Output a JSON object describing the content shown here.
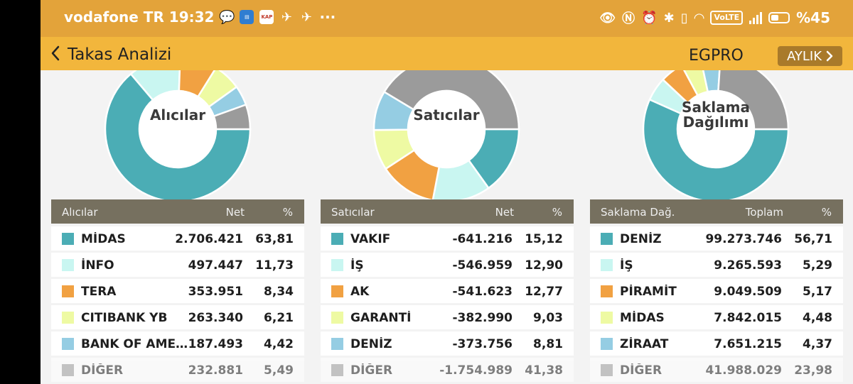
{
  "status_bar": {
    "carrier_time": "vodafone TR 19:32",
    "notification_icons": [
      "chat-bubble-icon",
      "bank-app-icon",
      "kap-icon",
      "swirl-icon",
      "swirl-icon"
    ],
    "kap_label": "KAP",
    "more": "···",
    "battery_text": "%45",
    "volte_label": "VoLTE",
    "battery_level": 0.45
  },
  "app_bar": {
    "title": "Takas Analizi",
    "symbol": "EGPRO",
    "period_label": "AYLIK",
    "background": "#f2b63c"
  },
  "colors": {
    "teal": "#4badb5",
    "light_cyan": "#c9f6f1",
    "orange": "#f1a142",
    "light_yellow": "#eefaa3",
    "light_blue": "#95cde3",
    "gray": "#9b9b9b"
  },
  "panels": [
    {
      "chart_label": "Alıcılar",
      "headers": [
        "Alıcılar",
        "Net",
        "%"
      ],
      "chart_data": {
        "type": "pie",
        "categories": [
          "MİDAS",
          "İNFO",
          "TERA",
          "CITIBANK YB",
          "BANK OF AMERI…",
          "DİĞER"
        ],
        "values": [
          63.81,
          11.73,
          8.34,
          6.21,
          4.42,
          5.49
        ]
      },
      "rows": [
        {
          "name": "MİDAS",
          "value": "2.706.421",
          "pct": "63,81",
          "color": "#4badb5"
        },
        {
          "name": "İNFO",
          "value": "497.447",
          "pct": "11,73",
          "color": "#c9f6f1"
        },
        {
          "name": "TERA",
          "value": "353.951",
          "pct": "8,34",
          "color": "#f1a142"
        },
        {
          "name": "CITIBANK YB",
          "value": "263.340",
          "pct": "6,21",
          "color": "#eefaa3"
        },
        {
          "name": "BANK OF AMERI…",
          "value": "187.493",
          "pct": "4,42",
          "color": "#95cde3"
        },
        {
          "name": "DİĞER",
          "value": "232.881",
          "pct": "5,49",
          "color": "#9b9b9b"
        }
      ]
    },
    {
      "chart_label": "Satıcılar",
      "headers": [
        "Satıcılar",
        "Net",
        "%"
      ],
      "chart_data": {
        "type": "pie",
        "categories": [
          "VAKIF",
          "İŞ",
          "AK",
          "GARANTİ",
          "DENİZ",
          "DİĞER"
        ],
        "values": [
          15.12,
          12.9,
          12.77,
          9.03,
          8.81,
          41.38
        ]
      },
      "rows": [
        {
          "name": "VAKIF",
          "value": "-641.216",
          "pct": "15,12",
          "color": "#4badb5"
        },
        {
          "name": "İŞ",
          "value": "-546.959",
          "pct": "12,90",
          "color": "#c9f6f1"
        },
        {
          "name": "AK",
          "value": "-541.623",
          "pct": "12,77",
          "color": "#f1a142"
        },
        {
          "name": "GARANTİ",
          "value": "-382.990",
          "pct": "9,03",
          "color": "#eefaa3"
        },
        {
          "name": "DENİZ",
          "value": "-373.756",
          "pct": "8,81",
          "color": "#95cde3"
        },
        {
          "name": "DİĞER",
          "value": "-1.754.989",
          "pct": "41,38",
          "color": "#9b9b9b"
        }
      ]
    },
    {
      "chart_label": "Saklama Dağılımı",
      "headers": [
        "Saklama Dağ.",
        "Toplam",
        "%"
      ],
      "chart_data": {
        "type": "pie",
        "categories": [
          "DENİZ",
          "İŞ",
          "PİRAMİT",
          "MİDAS",
          "ZİRAAT",
          "DİĞER"
        ],
        "values": [
          56.71,
          5.29,
          5.17,
          4.48,
          4.37,
          23.98
        ]
      },
      "rows": [
        {
          "name": "DENİZ",
          "value": "99.273.746",
          "pct": "56,71",
          "color": "#4badb5"
        },
        {
          "name": "İŞ",
          "value": "9.265.593",
          "pct": "5,29",
          "color": "#c9f6f1"
        },
        {
          "name": "PİRAMİT",
          "value": "9.049.509",
          "pct": "5,17",
          "color": "#f1a142"
        },
        {
          "name": "MİDAS",
          "value": "7.842.015",
          "pct": "4,48",
          "color": "#eefaa3"
        },
        {
          "name": "ZİRAAT",
          "value": "7.651.215",
          "pct": "4,37",
          "color": "#95cde3"
        },
        {
          "name": "DİĞER",
          "value": "41.988.029",
          "pct": "23,98",
          "color": "#9b9b9b"
        }
      ]
    }
  ]
}
